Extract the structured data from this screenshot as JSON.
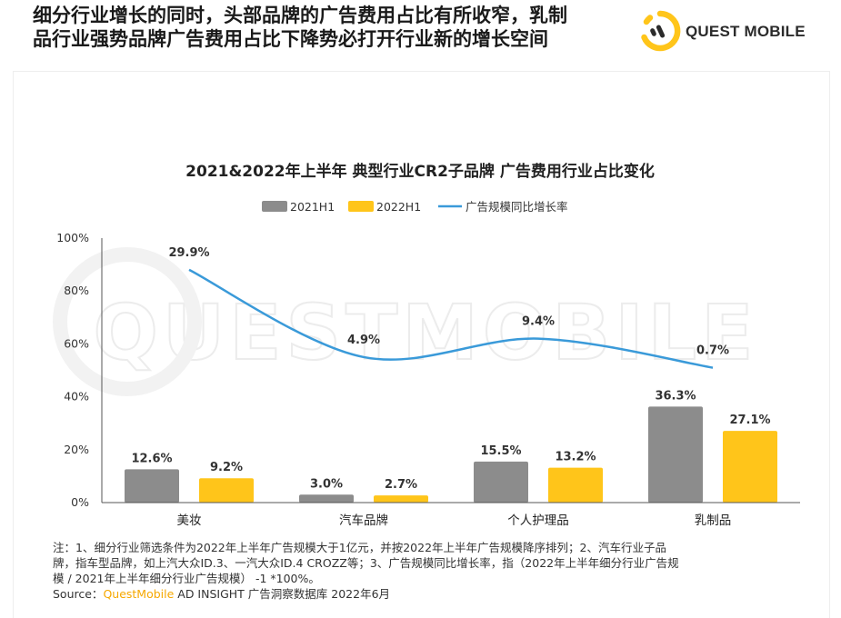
{
  "header": {
    "title_line1": "细分行业增长的同时，头部品牌的广告费用占比有所收窄，乳制",
    "title_line2": "品行业强势品牌广告费用占比下降势必打开行业新的增长空间",
    "logo_text": "QUEST MOBILE",
    "watermark_text": "QUESTMOBILE"
  },
  "colors": {
    "bar_2021": "#8c8c8c",
    "bar_2022": "#ffc51a",
    "line": "#3a9ad9",
    "brand": "#f6a800"
  },
  "chart_data": {
    "type": "bar",
    "title": "2021&2022年上半年 典型行业CR2子品牌 广告费用行业占比变化",
    "categories": [
      "美妆",
      "汽车品牌",
      "个人护理品",
      "乳制品"
    ],
    "series": [
      {
        "name": "2021H1",
        "values": [
          12.6,
          3.0,
          15.5,
          36.3
        ],
        "labels": [
          "12.6%",
          "3.0%",
          "15.5%",
          "36.3%"
        ]
      },
      {
        "name": "2022H1",
        "values": [
          9.2,
          2.7,
          13.2,
          27.1
        ],
        "labels": [
          "9.2%",
          "2.7%",
          "13.2%",
          "27.1%"
        ]
      }
    ],
    "line_series": {
      "name": "广告规模同比增长率",
      "values": [
        29.9,
        4.9,
        9.4,
        0.7
      ],
      "labels": [
        "29.9%",
        "4.9%",
        "9.4%",
        "0.7%"
      ],
      "plotted_on_left_axis_percent": [
        88,
        55,
        62,
        51
      ]
    },
    "y_ticks": [
      "0%",
      "20%",
      "40%",
      "60%",
      "80%",
      "100%"
    ],
    "ylim": [
      0,
      100
    ],
    "legend": [
      "2021H1",
      "2022H1",
      "广告规模同比增长率"
    ],
    "legend_position": "top-center",
    "xlabel": "",
    "ylabel": ""
  },
  "footer": {
    "note_line1": "注：1、细分行业筛选条件为2022年上半年广告规模大于1亿元，并按2022年上半年广告规模降序排列；2、汽车行业子品",
    "note_line2": "牌，指车型品牌，如上汽大众ID.3、一汽大众ID.4 CROZZ等；3、广告规模同比增长率，指（2022年上半年细分行业广告规",
    "note_line3": "模 / 2021年上半年细分行业广告规模） -1 *100%。",
    "source_prefix": "Source：",
    "source_brand": "QuestMobile",
    "source_rest": " AD INSIGHT 广告洞察数据库 2022年6月"
  }
}
